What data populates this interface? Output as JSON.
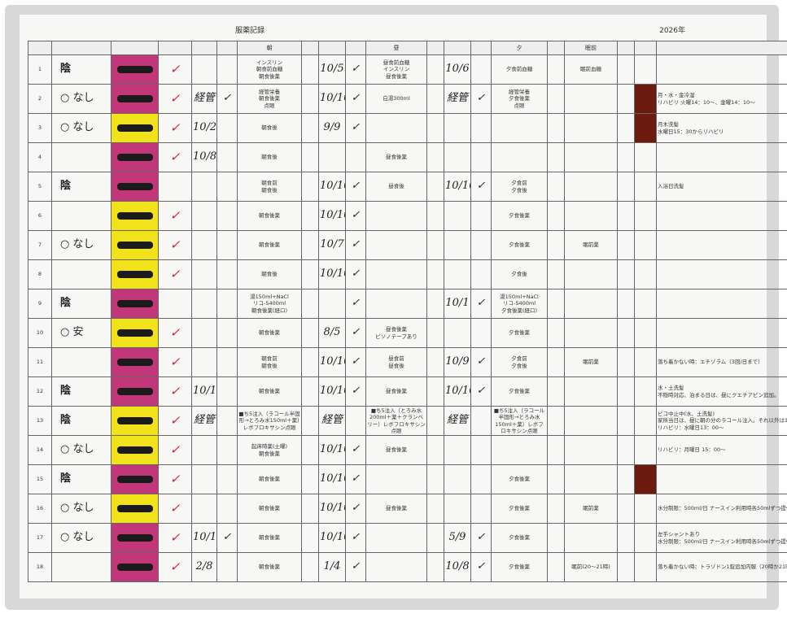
{
  "header": {
    "title": "服薬記録",
    "date": "2026年",
    "morning": "朝",
    "noon": "昼",
    "evening": "夕",
    "bedtime": "眠前"
  },
  "rows": [
    {
      "no": "1",
      "status": "陰",
      "check": "✓",
      "mtext": "インスリン\n朝食前血糖\n朝食後薬",
      "nd": "10/5",
      "nc": "✓",
      "ntext": "昼食前血糖\nインスリン\n昼食後薬",
      "ed": "10/6",
      "etext": "夕食前血糖",
      "bed": "眠前血糖",
      "name_color": "#c2367a"
    },
    {
      "no": "2",
      "status": "○ なし",
      "check": "✓",
      "mg": "経管",
      "mc": "✓",
      "mtext": "経管栄養\n朝食後薬\n点眼",
      "nd": "10/10",
      "nc": "✓",
      "ntext": "白湯300ml",
      "ed": "経管",
      "ec": "✓",
      "etext": "経管栄養\n夕食後薬\n点眼",
      "note": "月・水・金冷湿\nリハビリ 火曜14：10〜、金曜14：10〜",
      "name_color": "#c2367a",
      "mark_color": "#6b1a10"
    },
    {
      "no": "3",
      "status": "○ なし",
      "check": "✓",
      "mg": "10/2",
      "mtext": "朝食後",
      "nd": "9/9",
      "nc": "✓",
      "note": "月木洗髪\n水曜日15：30からリハビリ",
      "name_color": "#f2e21a",
      "mark_color": "#6b1a10"
    },
    {
      "no": "4",
      "check": "✓",
      "mg": "10/8",
      "mtext": "朝食後",
      "ntext": "昼食後薬",
      "name_color": "#c2367a"
    },
    {
      "no": "5",
      "status": "陰",
      "mtext": "朝食前\n朝食後",
      "nd": "10/10",
      "nc": "✓",
      "ntext": "昼食後",
      "ed": "10/10",
      "ec": "✓",
      "etext": "夕食前\n夕食後",
      "note": "入浴日洗髪",
      "name_color": "#c2367a"
    },
    {
      "no": "6",
      "check": "✓",
      "mtext": "朝食後薬",
      "nd": "10/10",
      "nc": "✓",
      "etext": "夕食後薬",
      "name_color": "#f2e21a"
    },
    {
      "no": "7",
      "status": "○ なし",
      "check": "✓",
      "mtext": "朝食後薬",
      "nd": "10/7",
      "nc": "✓",
      "etext": "夕食後薬",
      "bed": "眠前薬",
      "name_color": "#f2e21a"
    },
    {
      "no": "8",
      "check": "✓",
      "mtext": "朝食後",
      "nd": "10/10",
      "nc": "✓",
      "etext": "夕食後",
      "name_color": "#f2e21a"
    },
    {
      "no": "9",
      "status": "陰",
      "mtext": "湯150ml+NaCl\nリコ-5400ml\n朝食後薬(経口)",
      "nc": "✓",
      "ed": "10/1",
      "ec": "✓",
      "etext": "湯150ml+NaCl\nリコ-5400ml\n夕食後薬(経口)",
      "name_color": "#c2367a"
    },
    {
      "no": "10",
      "status": "○ 安",
      "check": "✓",
      "mtext": "朝食後薬",
      "nd": "8/5",
      "nc": "✓",
      "ntext": "昼食後薬\nピソノテープあり",
      "etext": "夕食後薬",
      "name_color": "#f2e21a"
    },
    {
      "no": "11",
      "check": "✓",
      "mtext": "朝食前\n朝食後",
      "nd": "10/10",
      "nc": "✓",
      "ntext": "昼食前\n昼食後",
      "ed": "10/9",
      "ec": "✓",
      "etext": "夕食前\n夕食後",
      "bed": "眠前薬",
      "note": "落ち着かない時：エチゾラム（3回/日まで）",
      "name_color": "#c2367a"
    },
    {
      "no": "12",
      "status": "陰",
      "check": "✓",
      "mg": "10/10",
      "mtext": "朝食後薬",
      "nd": "10/10",
      "nc": "✓",
      "ntext": "昼食後薬",
      "ed": "10/10",
      "ec": "✓",
      "etext": "夕食後薬",
      "note": "水・土洗髪\n不穏時対応、泊まる日は、昼にクエチアピン追加。",
      "name_color": "#c2367a"
    },
    {
      "no": "13",
      "status": "陰",
      "check": "✓",
      "mg": "経管",
      "mtext": "■ち5注入（ラコール半固形→とろみ水150ml＋薬）レボフロキサシン点眼",
      "nd": "経管",
      "ntext": "■ち5注入（とろみ水200ml＋薬＋クランベリー）レボフロキサシン点眼",
      "ed": "経管",
      "etext": "■ち5注入（ラコール半固形→とろみ水150ml＋薬）レボフロキサシン点眼",
      "note": "ピコ中止中(水、土洗髪)\n家所当日は、昼に朝の分のラコール注入。それ以外は1\nリハビリ：水曜日13：00〜",
      "name_color": "#f2e21a"
    },
    {
      "no": "14",
      "status": "○ なし",
      "check": "✓",
      "mtext": "起床時薬(土曜)\n朝食後薬",
      "nd": "10/10",
      "nc": "✓",
      "ntext": "昼食後薬",
      "note": "リハビリ：月曜日 15：00〜",
      "name_color": "#f2e21a"
    },
    {
      "no": "15",
      "status": "陰",
      "check": "✓",
      "mtext": "朝食後薬",
      "nd": "10/10",
      "nc": "✓",
      "etext": "夕食後薬",
      "name_color": "#c2367a",
      "mark_color": "#6b1a10"
    },
    {
      "no": "16",
      "status": "○ なし",
      "check": "✓",
      "mtext": "朝食後薬",
      "nd": "10/10",
      "nc": "✓",
      "ntext": "昼食後薬",
      "etext": "夕食後薬",
      "bed": "眠前薬",
      "note": "水分制限：500ml/日 ナースイン利用時各50mlずつ提供",
      "name_color": "#f2e21a"
    },
    {
      "no": "17",
      "status": "○ なし",
      "check": "✓",
      "mg": "10/10",
      "mc": "✓",
      "mtext": "朝食後薬",
      "nd": "10/10",
      "nc": "✓",
      "ed": "5/9",
      "ec": "✓",
      "etext": "夕食後薬",
      "note": "左手シャントあり\n水分制限：500ml/日 ナースイン利用時各50mlずつ提供",
      "name_color": "#c2367a"
    },
    {
      "no": "18",
      "check": "✓",
      "mg": "2/8",
      "mtext": "朝食後薬",
      "nd": "1/4",
      "nc": "✓",
      "ed": "10/8",
      "ec": "✓",
      "etext": "夕食後薬",
      "bed": "眠前(20〜21時)",
      "note": "落ち着かない時：トラゾドン1錠追加内服（20時か21時頃）",
      "name_color": "#c2367a"
    }
  ]
}
